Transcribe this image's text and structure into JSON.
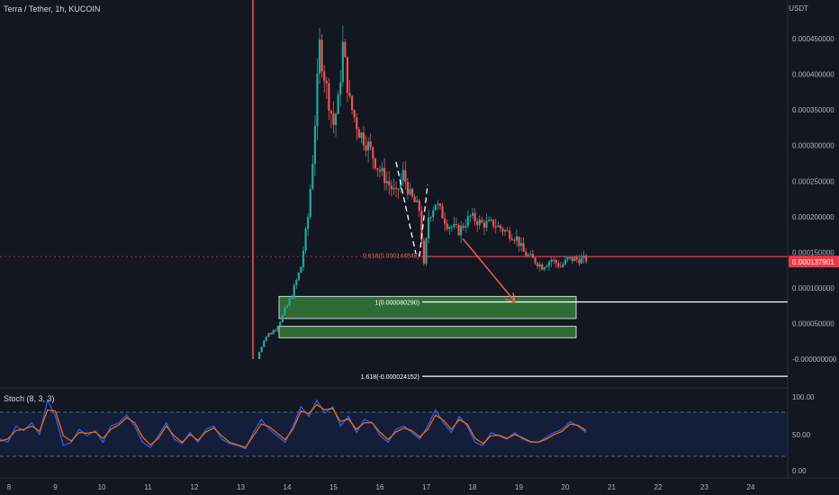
{
  "header": {
    "title": "Terra / Tether, 1h, KUCOIN",
    "currency": "USDT"
  },
  "indicator": {
    "label": "Stoch (8, 3, 3)"
  },
  "colors": {
    "background": "#131722",
    "up": "#26a69a",
    "down": "#ef5350",
    "price_line": "#f23645",
    "arrow": "#f0604d",
    "zone": "#2e6b35",
    "stoch_k": "#2962ff",
    "stoch_d": "#ff6d00",
    "text": "#b2b5be"
  },
  "chart_data": [
    {
      "type": "candlestick",
      "title": "Terra / Tether, 1h, KUCOIN",
      "x_ticks": [
        "8",
        "9",
        "10",
        "11",
        "12",
        "13",
        "14",
        "15",
        "16",
        "17",
        "18",
        "19",
        "20",
        "21",
        "22",
        "23",
        "24"
      ],
      "y_ticks": [
        "0.000450000",
        "0.000400000",
        "0.000350000",
        "0.000300000",
        "0.000250000",
        "0.000200000",
        "0.000150000",
        "0.000100000",
        "0.000050000",
        "-0.000000000"
      ],
      "ylim": [
        -5e-06,
        0.0005
      ],
      "grid": false,
      "current_price": "0.000137901",
      "price_line_value": 0.000144,
      "fib_levels": [
        {
          "label": "0.618(0.000144848)",
          "value": 0.000144848
        },
        {
          "label": "1(0.000080290)",
          "value": 8.029e-05
        },
        {
          "label": "1.618(-0.000024152)",
          "value": -2.4152e-05
        }
      ],
      "demand_zones": [
        {
          "from": 5.7e-05,
          "to": 8.8e-05
        },
        {
          "from": 3e-05,
          "to": 4.6e-05
        }
      ],
      "close_path": [
        [
          13.35,
          0.0
        ],
        [
          13.5,
          3e-05
        ],
        [
          13.7,
          4e-05
        ],
        [
          13.9,
          6e-05
        ],
        [
          14.1,
          9e-05
        ],
        [
          14.3,
          0.00013
        ],
        [
          14.45,
          0.0002
        ],
        [
          14.55,
          0.00028
        ],
        [
          14.7,
          0.00044
        ],
        [
          14.85,
          0.00038
        ],
        [
          15.0,
          0.00033
        ],
        [
          15.1,
          0.00036
        ],
        [
          15.2,
          0.00044
        ],
        [
          15.35,
          0.00036
        ],
        [
          15.55,
          0.00032
        ],
        [
          15.75,
          0.0003
        ],
        [
          15.95,
          0.00027
        ],
        [
          16.15,
          0.00025
        ],
        [
          16.35,
          0.00023
        ],
        [
          16.5,
          0.00026
        ],
        [
          16.65,
          0.00023
        ],
        [
          16.85,
          0.00021
        ],
        [
          16.95,
          0.00013
        ],
        [
          17.05,
          0.0002
        ],
        [
          17.2,
          0.00022
        ],
        [
          17.45,
          0.00019
        ],
        [
          17.7,
          0.00018
        ],
        [
          17.95,
          0.0002
        ],
        [
          18.2,
          0.00019
        ],
        [
          18.45,
          0.00019
        ],
        [
          18.7,
          0.00018
        ],
        [
          18.95,
          0.00017
        ],
        [
          19.1,
          0.00015
        ],
        [
          19.3,
          0.00014
        ],
        [
          19.5,
          0.00013
        ],
        [
          19.7,
          0.00014
        ],
        [
          19.9,
          0.00013
        ],
        [
          20.05,
          0.00014
        ],
        [
          20.25,
          0.00014
        ],
        [
          20.45,
          0.00014
        ]
      ]
    },
    {
      "type": "line",
      "title": "Stoch (8, 3, 3)",
      "y_ticks": [
        "100.00",
        "50.00",
        "0.00"
      ],
      "ylim": [
        0,
        100
      ],
      "bands": [
        80,
        20
      ],
      "series": [
        {
          "values": [
            35,
            30,
            55,
            48,
            60,
            42,
            95,
            70,
            25,
            30,
            50,
            40,
            48,
            30,
            55,
            60,
            72,
            55,
            30,
            22,
            40,
            60,
            35,
            28,
            45,
            30,
            50,
            55,
            35,
            28,
            25,
            20,
            45,
            65,
            50,
            40,
            30,
            55,
            85,
            70,
            95,
            75,
            85,
            55,
            70,
            45,
            65,
            60,
            40,
            30,
            50,
            55,
            45,
            35,
            55,
            80,
            60,
            45,
            70,
            55,
            30,
            25,
            45,
            40,
            35,
            45,
            35,
            30,
            30,
            38,
            45,
            50,
            62,
            55,
            45
          ]
        },
        {
          "values": [
            32,
            35,
            48,
            50,
            55,
            47,
            80,
            78,
            40,
            32,
            45,
            44,
            46,
            36,
            50,
            57,
            68,
            60,
            38,
            26,
            36,
            55,
            40,
            30,
            42,
            33,
            46,
            52,
            40,
            30,
            26,
            22,
            40,
            58,
            54,
            44,
            34,
            50,
            78,
            74,
            88,
            80,
            82,
            62,
            66,
            50,
            60,
            60,
            45,
            34,
            46,
            52,
            48,
            38,
            50,
            72,
            64,
            50,
            65,
            58,
            36,
            28,
            40,
            41,
            36,
            42,
            37,
            31,
            30,
            35,
            42,
            47,
            58,
            56,
            48
          ]
        }
      ]
    }
  ]
}
